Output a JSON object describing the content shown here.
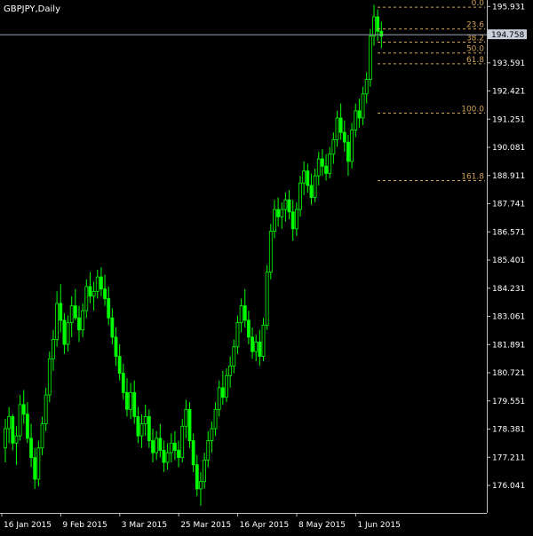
{
  "window": {
    "title": "GBPJPY,Daily"
  },
  "current_price": "194.758",
  "colors": {
    "background": "#000000",
    "candle": "#00ff00",
    "axis": "#c0c0c0",
    "fib": "#d2a25a",
    "price_line": "#9aa4b2",
    "price_label_bg": "#c8d0dc",
    "price_label_text": "#000000"
  },
  "fib_levels": [
    {
      "label": "0.0",
      "price": 195.9
    },
    {
      "label": "23.6",
      "price": 195.0
    },
    {
      "label": "38.2",
      "price": 194.45
    },
    {
      "label": "50.0",
      "price": 194.0
    },
    {
      "label": "61.8",
      "price": 193.55
    },
    {
      "label": "100.0",
      "price": 191.5
    },
    {
      "label": "161.8",
      "price": 188.7
    }
  ],
  "chart_data": {
    "type": "candlestick",
    "symbol": "GBPJPY",
    "timeframe": "Daily",
    "ylim": [
      174.9,
      196.2
    ],
    "y_ticks": [
      "195.931",
      "194.758",
      "193.591",
      "192.421",
      "191.251",
      "190.081",
      "188.911",
      "187.741",
      "186.571",
      "185.401",
      "184.231",
      "183.061",
      "181.891",
      "180.721",
      "179.551",
      "178.381",
      "177.211",
      "176.041"
    ],
    "x_ticks": [
      "16 Jan 2015",
      "9 Feb 2015",
      "3 Mar 2015",
      "25 Mar 2015",
      "16 Apr 2015",
      "8 May 2015",
      "1 Jun 2015"
    ],
    "x_tick_bar_index": [
      0,
      16,
      32,
      48,
      64,
      80,
      96
    ],
    "ohlc": [
      [
        177.6,
        178.8,
        177.0,
        178.4
      ],
      [
        178.4,
        179.3,
        177.8,
        178.9
      ],
      [
        178.9,
        179.0,
        177.5,
        177.8
      ],
      [
        177.8,
        178.5,
        176.9,
        178.1
      ],
      [
        178.1,
        179.8,
        177.9,
        179.4
      ],
      [
        179.4,
        180.0,
        178.6,
        179.0
      ],
      [
        179.0,
        179.5,
        177.8,
        178.0
      ],
      [
        178.0,
        178.6,
        176.8,
        177.2
      ],
      [
        177.2,
        177.6,
        175.9,
        176.3
      ],
      [
        176.3,
        177.9,
        176.0,
        177.6
      ],
      [
        177.6,
        178.9,
        177.3,
        178.6
      ],
      [
        178.6,
        180.1,
        178.3,
        179.8
      ],
      [
        179.8,
        181.6,
        179.5,
        181.3
      ],
      [
        181.3,
        182.5,
        180.8,
        182.1
      ],
      [
        182.1,
        184.1,
        181.8,
        183.6
      ],
      [
        183.6,
        184.4,
        182.4,
        182.9
      ],
      [
        182.9,
        183.2,
        181.5,
        181.9
      ],
      [
        181.9,
        183.1,
        181.6,
        182.8
      ],
      [
        182.8,
        183.9,
        182.2,
        183.5
      ],
      [
        183.5,
        184.2,
        182.9,
        183.0
      ],
      [
        183.0,
        183.5,
        182.0,
        182.5
      ],
      [
        182.5,
        183.6,
        182.2,
        183.3
      ],
      [
        183.3,
        184.6,
        183.0,
        184.3
      ],
      [
        184.3,
        184.9,
        183.6,
        183.9
      ],
      [
        183.9,
        184.5,
        183.3,
        184.1
      ],
      [
        184.1,
        185.0,
        183.8,
        184.7
      ],
      [
        184.7,
        185.1,
        183.9,
        184.2
      ],
      [
        184.2,
        184.8,
        183.5,
        183.8
      ],
      [
        183.8,
        184.3,
        182.7,
        183.0
      ],
      [
        183.0,
        183.4,
        181.9,
        182.2
      ],
      [
        182.2,
        182.6,
        181.0,
        181.4
      ],
      [
        181.4,
        181.9,
        180.4,
        180.7
      ],
      [
        180.7,
        181.1,
        179.6,
        179.9
      ],
      [
        179.9,
        180.5,
        178.9,
        179.2
      ],
      [
        179.2,
        180.3,
        178.8,
        179.9
      ],
      [
        179.9,
        180.4,
        178.6,
        178.9
      ],
      [
        178.9,
        179.3,
        177.8,
        178.1
      ],
      [
        178.1,
        179.0,
        177.6,
        178.6
      ],
      [
        178.6,
        179.4,
        178.1,
        178.9
      ],
      [
        178.9,
        179.2,
        177.6,
        177.9
      ],
      [
        177.9,
        178.4,
        177.0,
        177.4
      ],
      [
        177.4,
        178.3,
        177.1,
        178.0
      ],
      [
        178.0,
        178.6,
        177.2,
        177.5
      ],
      [
        177.5,
        177.9,
        176.6,
        177.0
      ],
      [
        177.0,
        177.8,
        176.7,
        177.4
      ],
      [
        177.4,
        178.2,
        177.0,
        177.8
      ],
      [
        177.8,
        178.3,
        177.1,
        177.5
      ],
      [
        177.5,
        177.9,
        176.8,
        177.2
      ],
      [
        177.2,
        178.8,
        177.0,
        178.5
      ],
      [
        178.5,
        179.6,
        178.0,
        179.2
      ],
      [
        179.2,
        179.5,
        177.6,
        177.9
      ],
      [
        177.9,
        178.2,
        176.6,
        176.9
      ],
      [
        176.9,
        177.3,
        175.6,
        175.9
      ],
      [
        175.9,
        176.6,
        175.2,
        176.2
      ],
      [
        176.2,
        177.4,
        175.9,
        177.1
      ],
      [
        177.1,
        178.3,
        176.8,
        177.9
      ],
      [
        177.9,
        178.7,
        177.4,
        178.4
      ],
      [
        178.4,
        179.5,
        178.1,
        179.2
      ],
      [
        179.2,
        180.4,
        178.9,
        180.1
      ],
      [
        180.1,
        180.8,
        179.4,
        179.7
      ],
      [
        179.7,
        180.9,
        179.5,
        180.6
      ],
      [
        180.6,
        181.4,
        180.1,
        181.0
      ],
      [
        181.0,
        182.1,
        180.7,
        181.8
      ],
      [
        181.8,
        183.1,
        181.5,
        182.8
      ],
      [
        182.8,
        183.8,
        182.4,
        183.5
      ],
      [
        183.5,
        184.2,
        182.6,
        182.9
      ],
      [
        182.9,
        183.3,
        181.9,
        182.2
      ],
      [
        182.2,
        182.6,
        181.3,
        181.6
      ],
      [
        181.6,
        182.3,
        181.2,
        182.0
      ],
      [
        182.0,
        182.5,
        181.0,
        181.4
      ],
      [
        181.4,
        183.0,
        181.2,
        182.7
      ],
      [
        182.7,
        185.2,
        182.5,
        184.9
      ],
      [
        184.9,
        186.9,
        184.6,
        186.6
      ],
      [
        186.6,
        187.9,
        186.3,
        187.5
      ],
      [
        187.5,
        188.0,
        186.8,
        187.2
      ],
      [
        187.2,
        187.8,
        186.7,
        187.5
      ],
      [
        187.5,
        188.2,
        187.0,
        187.9
      ],
      [
        187.9,
        188.3,
        187.1,
        187.4
      ],
      [
        187.4,
        187.9,
        186.2,
        186.7
      ],
      [
        186.7,
        187.8,
        186.4,
        187.5
      ],
      [
        187.5,
        188.9,
        187.2,
        188.6
      ],
      [
        188.6,
        189.5,
        188.1,
        189.1
      ],
      [
        189.1,
        189.4,
        188.2,
        188.5
      ],
      [
        188.5,
        189.0,
        187.7,
        188.0
      ],
      [
        188.0,
        189.2,
        187.8,
        188.9
      ],
      [
        188.9,
        189.9,
        188.5,
        189.6
      ],
      [
        189.6,
        190.0,
        188.9,
        189.3
      ],
      [
        189.3,
        189.8,
        188.7,
        189.0
      ],
      [
        189.0,
        190.1,
        188.8,
        189.8
      ],
      [
        189.8,
        190.7,
        189.4,
        190.4
      ],
      [
        190.4,
        191.6,
        190.1,
        191.3
      ],
      [
        191.3,
        191.9,
        190.4,
        190.7
      ],
      [
        190.7,
        191.2,
        189.9,
        190.3
      ],
      [
        190.3,
        190.6,
        188.9,
        189.5
      ],
      [
        189.5,
        191.1,
        189.2,
        190.8
      ],
      [
        190.8,
        191.9,
        190.5,
        191.6
      ],
      [
        191.6,
        192.1,
        190.9,
        191.3
      ],
      [
        191.3,
        192.6,
        191.0,
        192.3
      ],
      [
        192.3,
        193.2,
        191.9,
        192.9
      ],
      [
        192.9,
        195.0,
        192.6,
        194.7
      ],
      [
        194.7,
        196.0,
        194.3,
        195.5
      ],
      [
        195.5,
        195.8,
        194.5,
        194.9
      ],
      [
        194.9,
        195.3,
        194.2,
        194.7
      ]
    ]
  }
}
